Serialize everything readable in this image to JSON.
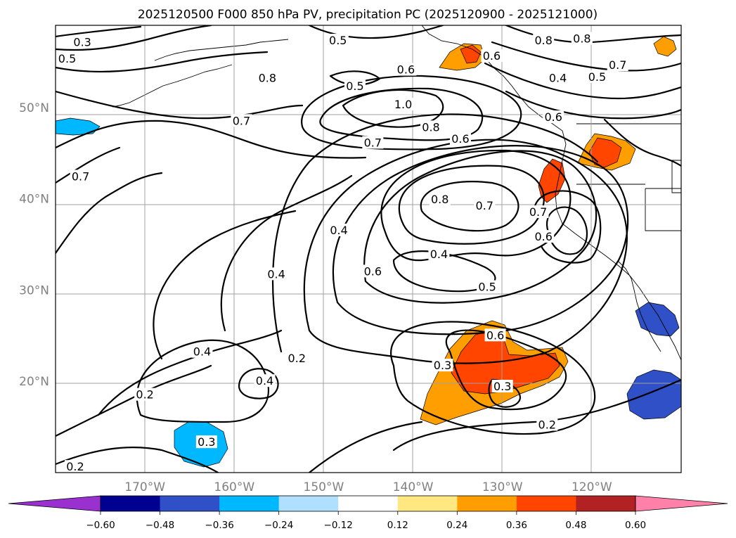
{
  "chart_data": {
    "type": "contour-map",
    "title": "2025120500 F000 850 hPa PV, precipitation PC (2025120900 - 2025121000)",
    "lon_range": [
      -180,
      -110
    ],
    "lat_range": [
      10,
      59
    ],
    "x_ticks": [
      {
        "value": -170,
        "label": "170°W"
      },
      {
        "value": -160,
        "label": "160°W"
      },
      {
        "value": -150,
        "label": "150°W"
      },
      {
        "value": -140,
        "label": "140°W"
      },
      {
        "value": -130,
        "label": "130°W"
      },
      {
        "value": -120,
        "label": "120°W"
      }
    ],
    "y_ticks": [
      {
        "value": 20,
        "label": "20°N"
      },
      {
        "value": 30,
        "label": "30°N"
      },
      {
        "value": 40,
        "label": "40°N"
      },
      {
        "value": 50,
        "label": "50°N"
      }
    ],
    "contour_levels": [
      0.2,
      0.3,
      0.4,
      0.5,
      0.6,
      0.7,
      0.8,
      1.0
    ],
    "contour_labels": [
      {
        "lon": -177.0,
        "lat": 57.1,
        "text": "0.3"
      },
      {
        "lon": -178.7,
        "lat": 55.3,
        "text": "0.5"
      },
      {
        "lon": -148.4,
        "lat": 57.3,
        "text": "0.5"
      },
      {
        "lon": -156.3,
        "lat": 53.2,
        "text": "0.8"
      },
      {
        "lon": -159.2,
        "lat": 48.5,
        "text": "0.7"
      },
      {
        "lon": -146.5,
        "lat": 52.3,
        "text": "0.5"
      },
      {
        "lon": -141.1,
        "lat": 50.3,
        "text": "1.0"
      },
      {
        "lon": -138.0,
        "lat": 47.8,
        "text": "0.8"
      },
      {
        "lon": -144.5,
        "lat": 46.1,
        "text": "0.7"
      },
      {
        "lon": -134.7,
        "lat": 46.5,
        "text": "0.6"
      },
      {
        "lon": -125.4,
        "lat": 57.3,
        "text": "0.8"
      },
      {
        "lon": -121.1,
        "lat": 57.5,
        "text": "0.8"
      },
      {
        "lon": -131.2,
        "lat": 55.6,
        "text": "0.6"
      },
      {
        "lon": -117.1,
        "lat": 54.6,
        "text": "0.7"
      },
      {
        "lon": -123.8,
        "lat": 53.2,
        "text": "0.4"
      },
      {
        "lon": -119.4,
        "lat": 53.3,
        "text": "0.5"
      },
      {
        "lon": -124.3,
        "lat": 48.9,
        "text": "0.6"
      },
      {
        "lon": -140.8,
        "lat": 54.1,
        "text": "0.6"
      },
      {
        "lon": -177.2,
        "lat": 42.4,
        "text": "0.7"
      },
      {
        "lon": -137.0,
        "lat": 39.9,
        "text": "0.8"
      },
      {
        "lon": -132.0,
        "lat": 39.2,
        "text": "0.7"
      },
      {
        "lon": -126.0,
        "lat": 38.5,
        "text": "0.7"
      },
      {
        "lon": -125.4,
        "lat": 35.8,
        "text": "0.6"
      },
      {
        "lon": -148.3,
        "lat": 36.5,
        "text": "0.4"
      },
      {
        "lon": -137.1,
        "lat": 33.9,
        "text": "0.4"
      },
      {
        "lon": -144.5,
        "lat": 32.0,
        "text": "0.6"
      },
      {
        "lon": -131.7,
        "lat": 30.3,
        "text": "0.5"
      },
      {
        "lon": -155.3,
        "lat": 31.7,
        "text": "0.4"
      },
      {
        "lon": -130.8,
        "lat": 25.0,
        "text": "0.6"
      },
      {
        "lon": -163.6,
        "lat": 23.2,
        "text": "0.4"
      },
      {
        "lon": -136.7,
        "lat": 21.7,
        "text": "0.3"
      },
      {
        "lon": -130.0,
        "lat": 19.4,
        "text": "0.3"
      },
      {
        "lon": -153.0,
        "lat": 22.5,
        "text": "0.2"
      },
      {
        "lon": -156.6,
        "lat": 20.0,
        "text": "0.4"
      },
      {
        "lon": -170.0,
        "lat": 18.5,
        "text": "0.2"
      },
      {
        "lon": -125.0,
        "lat": 15.2,
        "text": "0.2"
      },
      {
        "lon": -163.1,
        "lat": 13.3,
        "text": "0.3"
      },
      {
        "lon": -177.8,
        "lat": 10.6,
        "text": "0.2"
      }
    ],
    "precip_scale": {
      "levels": [
        -0.6,
        -0.48,
        -0.36,
        -0.24,
        -0.12,
        0.12,
        0.24,
        0.36,
        0.48,
        0.6
      ],
      "tick_labels": [
        "−0.60",
        "−0.48",
        "−0.36",
        "−0.24",
        "−0.12",
        "0.12",
        "0.24",
        "0.36",
        "0.48",
        "0.60"
      ],
      "colors": [
        "#9b30d0",
        "#000090",
        "#3050c8",
        "#00b8ff",
        "#b0e0ff",
        "#ffffff",
        "#ffe880",
        "#ff9e00",
        "#ff4500",
        "#b22222",
        "#ff80a8"
      ],
      "extend": "both"
    },
    "precip_areas": [
      {
        "name": "gulf-alaska-orange",
        "value": 0.3,
        "center": [
          -133.5,
          57.0
        ]
      },
      {
        "name": "gulf-alaska-red",
        "value": 0.4,
        "center": [
          -133.2,
          57.3
        ]
      },
      {
        "name": "northwest-us-orange",
        "value": 0.3,
        "center": [
          -119.0,
          46.2
        ]
      },
      {
        "name": "northwest-us-red",
        "value": 0.4,
        "center": [
          -118.5,
          46.0
        ]
      },
      {
        "name": "oregon-coast-red",
        "value": 0.4,
        "center": [
          -123.7,
          42.5
        ]
      },
      {
        "name": "subtropical-orange",
        "value": 0.3,
        "center": [
          -131.5,
          20.5
        ]
      },
      {
        "name": "subtropical-red",
        "value": 0.42,
        "center": [
          -130.5,
          21.8
        ]
      },
      {
        "name": "hawaii-blue",
        "value": -0.35,
        "center": [
          -162.5,
          13.2
        ]
      },
      {
        "name": "baja-blue",
        "value": -0.4,
        "center": [
          -112.5,
          27.3
        ]
      },
      {
        "name": "mexico-blue",
        "value": -0.45,
        "center": [
          -113.5,
          17.5
        ]
      },
      {
        "name": "dateline-blue",
        "value": -0.3,
        "center": [
          -178.5,
          48.8
        ]
      },
      {
        "name": "northeast-orange",
        "value": 0.3,
        "center": [
          -113.0,
          57.0
        ]
      }
    ]
  }
}
